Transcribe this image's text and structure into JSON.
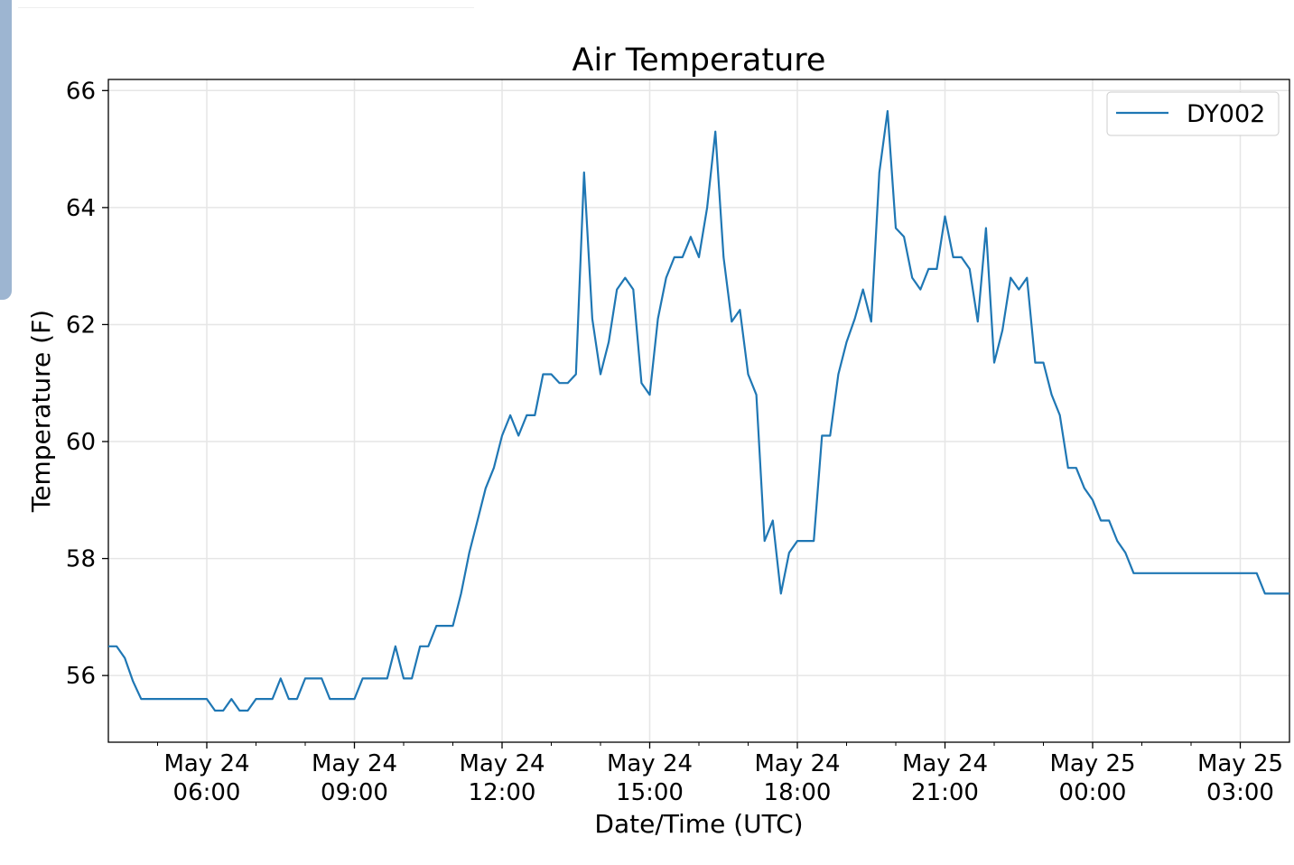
{
  "chart_data": {
    "type": "line",
    "title": "Air Temperature",
    "xlabel": "Date/Time (UTC)",
    "ylabel": "Temperature (F)",
    "x_start": "May 24 04:00",
    "x_step_minutes": 10,
    "xlim_hours": [
      0,
      24
    ],
    "ylim": [
      54.86,
      66.19
    ],
    "grid": true,
    "legend_position": "top-right",
    "yticks": [
      56,
      58,
      60,
      62,
      64,
      66
    ],
    "xticks": [
      {
        "hour": 2,
        "label1": "May 24",
        "label2": "06:00"
      },
      {
        "hour": 5,
        "label1": "May 24",
        "label2": "09:00"
      },
      {
        "hour": 8,
        "label1": "May 24",
        "label2": "12:00"
      },
      {
        "hour": 11,
        "label1": "May 24",
        "label2": "15:00"
      },
      {
        "hour": 14,
        "label1": "May 24",
        "label2": "18:00"
      },
      {
        "hour": 17,
        "label1": "May 24",
        "label2": "21:00"
      },
      {
        "hour": 20,
        "label1": "May 25",
        "label2": "00:00"
      },
      {
        "hour": 23,
        "label1": "May 25",
        "label2": "03:00"
      }
    ],
    "series": [
      {
        "name": "DY002",
        "color": "#1f77b4",
        "values": [
          56.5,
          56.5,
          56.3,
          55.9,
          55.6,
          55.6,
          55.6,
          55.6,
          55.6,
          55.6,
          55.6,
          55.6,
          55.6,
          55.4,
          55.4,
          55.6,
          55.4,
          55.4,
          55.6,
          55.6,
          55.6,
          55.95,
          55.6,
          55.6,
          55.95,
          55.95,
          55.95,
          55.6,
          55.6,
          55.6,
          55.6,
          55.95,
          55.95,
          55.95,
          55.95,
          56.5,
          55.95,
          55.95,
          56.5,
          56.5,
          56.85,
          56.85,
          56.85,
          57.4,
          58.1,
          58.65,
          59.2,
          59.55,
          60.1,
          60.45,
          60.1,
          60.45,
          60.45,
          61.15,
          61.15,
          61.0,
          61.0,
          61.15,
          64.6,
          62.1,
          61.15,
          61.7,
          62.6,
          62.8,
          62.6,
          61.0,
          60.8,
          62.1,
          62.8,
          63.15,
          63.15,
          63.5,
          63.15,
          64.0,
          65.3,
          63.15,
          62.05,
          62.25,
          61.15,
          60.8,
          58.3,
          58.65,
          57.4,
          58.1,
          58.3,
          58.3,
          58.3,
          60.1,
          60.1,
          61.15,
          61.7,
          62.1,
          62.6,
          62.05,
          64.6,
          65.65,
          63.65,
          63.5,
          62.8,
          62.6,
          62.95,
          62.95,
          63.85,
          63.15,
          63.15,
          62.95,
          62.05,
          63.65,
          61.35,
          61.9,
          62.8,
          62.6,
          62.8,
          61.35,
          61.35,
          60.8,
          60.45,
          59.55,
          59.55,
          59.2,
          59.0,
          58.65,
          58.65,
          58.3,
          58.1,
          57.75,
          57.75,
          57.75,
          57.75,
          57.75,
          57.75,
          57.75,
          57.75,
          57.75,
          57.75,
          57.75,
          57.75,
          57.75,
          57.75,
          57.75,
          57.75,
          57.4,
          57.4,
          57.4,
          57.4
        ]
      }
    ]
  }
}
